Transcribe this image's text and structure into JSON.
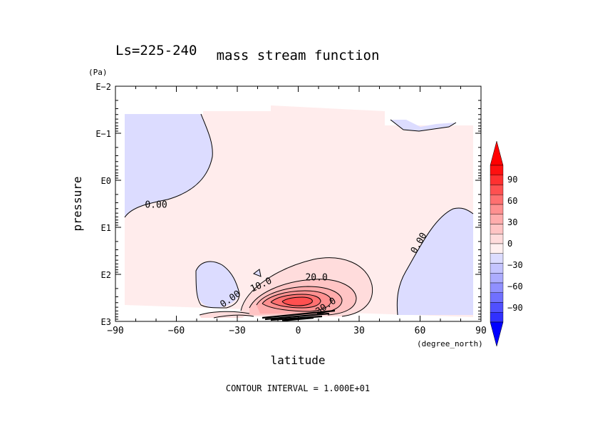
{
  "chart_data": {
    "type": "contour",
    "title": "mass stream function",
    "subtitle": "Ls=225-240",
    "xlabel": "latitude",
    "xunit": "(degree_north)",
    "ylabel": "pressure",
    "yunit": "(Pa)",
    "xlim": [
      -90,
      90
    ],
    "x_ticks": [
      -90,
      -60,
      -30,
      0,
      30,
      60,
      90
    ],
    "x_tick_labels": [
      "−90",
      "−60",
      "−30",
      "0",
      "30",
      "60",
      "90"
    ],
    "y_axis_scale": "log10, inverted",
    "ylim_log10": [
      -2,
      3
    ],
    "y_ticks_log10": [
      -2,
      -1,
      0,
      1,
      2,
      3
    ],
    "y_tick_labels": [
      "E−2",
      "E−1",
      "E0",
      "E1",
      "E2",
      "E3"
    ],
    "footer": "CONTOUR INTERVAL = 1.000E+01",
    "contour_interval": 10,
    "contour_labels": [
      {
        "text": "0.00",
        "lat": -70,
        "log10p": 0.55
      },
      {
        "text": "0.00",
        "lat": 60,
        "log10p": 1.35
      },
      {
        "text": "0.00",
        "lat": -33,
        "log10p": 2.55
      },
      {
        "text": "10.0",
        "lat": -18,
        "log10p": 2.25
      },
      {
        "text": "20.0",
        "lat": 9,
        "log10p": 2.1
      },
      {
        "text": "30.0",
        "lat": 14,
        "log10p": 2.7
      }
    ],
    "colorbar": {
      "ticks": [
        90,
        60,
        30,
        0,
        -30,
        -60,
        -90
      ],
      "tick_labels": [
        "90",
        "60",
        "30",
        "0",
        "−30",
        "−60",
        "−90"
      ],
      "colors": [
        "#3030ff",
        "#5050ff",
        "#7070ff",
        "#9090ff",
        "#acacff",
        "#c4c4ff",
        "#dcdcff",
        "#fff0f0",
        "#ffdcdc",
        "#ffc4c4",
        "#ffacac",
        "#ff9090",
        "#ff7070",
        "#ff5050",
        "#ff3030",
        "#ff1010"
      ],
      "under_color": "#0000ff",
      "over_color": "#ff0000"
    },
    "field_samples": [
      {
        "region": "southern-upper-cell",
        "lat_range": [
          -88,
          -50
        ],
        "log10p_range": [
          -0.8,
          0.8
        ],
        "sign": "negative",
        "value": -5
      },
      {
        "region": "northern-cell",
        "lat_range": [
          52,
          86
        ],
        "log10p_range": [
          1.0,
          2.9
        ],
        "sign": "negative",
        "value": -5
      },
      {
        "region": "southern-lower-cell",
        "lat_range": [
          -42,
          -22
        ],
        "log10p_range": [
          1.7,
          2.7
        ],
        "sign": "negative",
        "value": -3
      },
      {
        "region": "main-cell-core",
        "lat": 2,
        "log10p": 2.57,
        "value": 62
      },
      {
        "region": "broad-positive",
        "lat_range": [
          -50,
          50
        ],
        "log10p_range": [
          -1,
          3
        ],
        "sign": "positive",
        "value": 5
      }
    ],
    "colors": {
      "positive_fill": "#ffecec",
      "negative_fill": "#dcdcff"
    }
  }
}
